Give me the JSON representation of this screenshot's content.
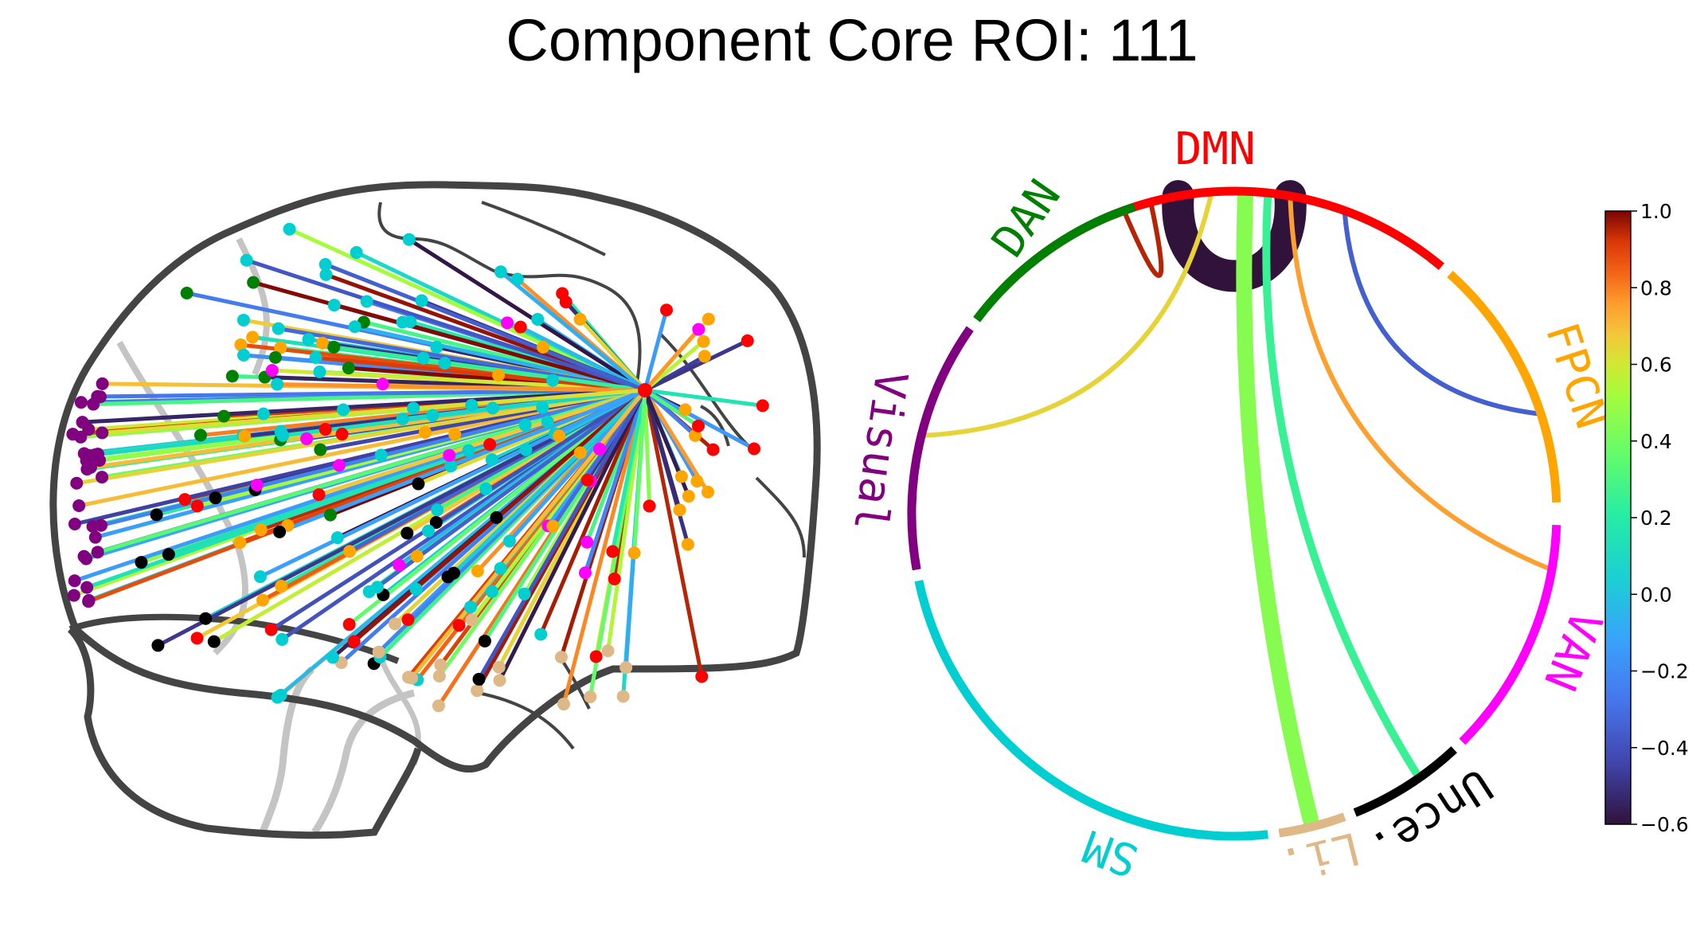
{
  "title": "Component Core ROI: 111",
  "colors": {
    "DMN": "#ff0000",
    "DAN": "#008000",
    "FPCN": "#ffa500",
    "Visual": "#800080",
    "VAN": "#ff00ff",
    "SM": "#00ced1",
    "Li": "#deb887",
    "Unce": "#000000",
    "brain_outline": "#444444",
    "sulci": "#555555",
    "cerebellum_lines": "#c0c0c0"
  },
  "chord": {
    "networks": [
      {
        "key": "DMN",
        "label": "DMN",
        "color": "#ff0000"
      },
      {
        "key": "FPCN",
        "label": "FPCN",
        "color": "#ffa500"
      },
      {
        "key": "VAN",
        "label": "VAN",
        "color": "#ff00ff"
      },
      {
        "key": "Unce",
        "label": "Unce.",
        "color": "#000000"
      },
      {
        "key": "Li",
        "label": "Li.",
        "color": "#deb887"
      },
      {
        "key": "SM",
        "label": "SM",
        "color": "#00ced1"
      },
      {
        "key": "Visual",
        "label": "Visual",
        "color": "#800080"
      },
      {
        "key": "DAN",
        "label": "DAN",
        "color": "#008000"
      }
    ],
    "connections": [
      {
        "from": "DMN",
        "to": "DMN",
        "value": -0.6
      },
      {
        "from": "DMN",
        "to": "DAN",
        "value": 0.95
      },
      {
        "from": "DMN",
        "to": "FPCN",
        "value": -0.35
      },
      {
        "from": "DMN",
        "to": "Visual",
        "value": 0.65
      },
      {
        "from": "DMN",
        "to": "VAN",
        "value": 0.75
      },
      {
        "from": "DMN",
        "to": "Li",
        "value": 0.45
      },
      {
        "from": "DMN",
        "to": "Unce",
        "value": 0.25
      }
    ]
  },
  "colorbar": {
    "min": -0.6,
    "max": 1.0,
    "ticks": [
      "1.0",
      "0.8",
      "0.6",
      "0.4",
      "0.2",
      "0.0",
      "−0.2",
      "−0.4",
      "−0.6"
    ],
    "colormap": "turbo"
  },
  "brain": {
    "view": "left sagittal glass brain",
    "hub_network": "DMN",
    "edge_count": 222
  }
}
